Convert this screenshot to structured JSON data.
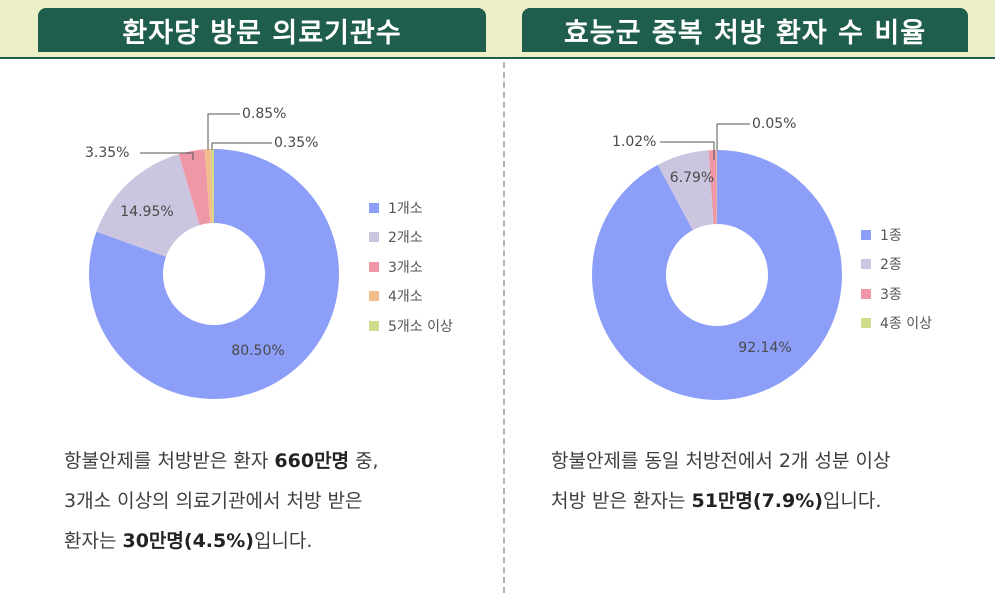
{
  "panels": [
    {
      "title": "환자당 방문 의료기관수",
      "caption": [
        [
          "항불안제를 처방받은 환자 ",
          "660만명",
          " 중,"
        ],
        [
          "3개소 이상의 의료기관에서 처방 받은",
          "",
          ""
        ],
        [
          "환자는 ",
          "30만명(4.5%)",
          "입니다."
        ]
      ]
    },
    {
      "title": "효능군 중복 처방 환자 수 비율",
      "caption": [
        [
          "항불안제를 동일 처방전에서 2개 성분 이상",
          "",
          ""
        ],
        [
          "처방 받은 환자는 ",
          "51만명(7.9%)",
          "입니다."
        ]
      ]
    }
  ],
  "chart_data": [
    {
      "type": "pie",
      "donut": true,
      "categories": [
        "1개소",
        "2개소",
        "3개소",
        "4개소",
        "5개소 이상"
      ],
      "values": [
        80.5,
        14.95,
        3.35,
        0.85,
        0.35
      ],
      "labels": [
        "80.50%",
        "14.95%",
        "3.35%",
        "0.85%",
        "0.35%"
      ],
      "colors": [
        "#8c9ef8",
        "#cbc5df",
        "#ee97a6",
        "#f3be8d",
        "#cfdc8c"
      ],
      "legend": "right"
    },
    {
      "type": "pie",
      "donut": true,
      "categories": [
        "1종",
        "2종",
        "3종",
        "4종 이상"
      ],
      "values": [
        92.14,
        6.79,
        1.02,
        0.05
      ],
      "labels": [
        "92.14%",
        "6.79%",
        "1.02%",
        "0.05%"
      ],
      "colors": [
        "#8c9ef8",
        "#cbc5df",
        "#ee97a6",
        "#cfdc8c"
      ],
      "legend": "right"
    }
  ]
}
